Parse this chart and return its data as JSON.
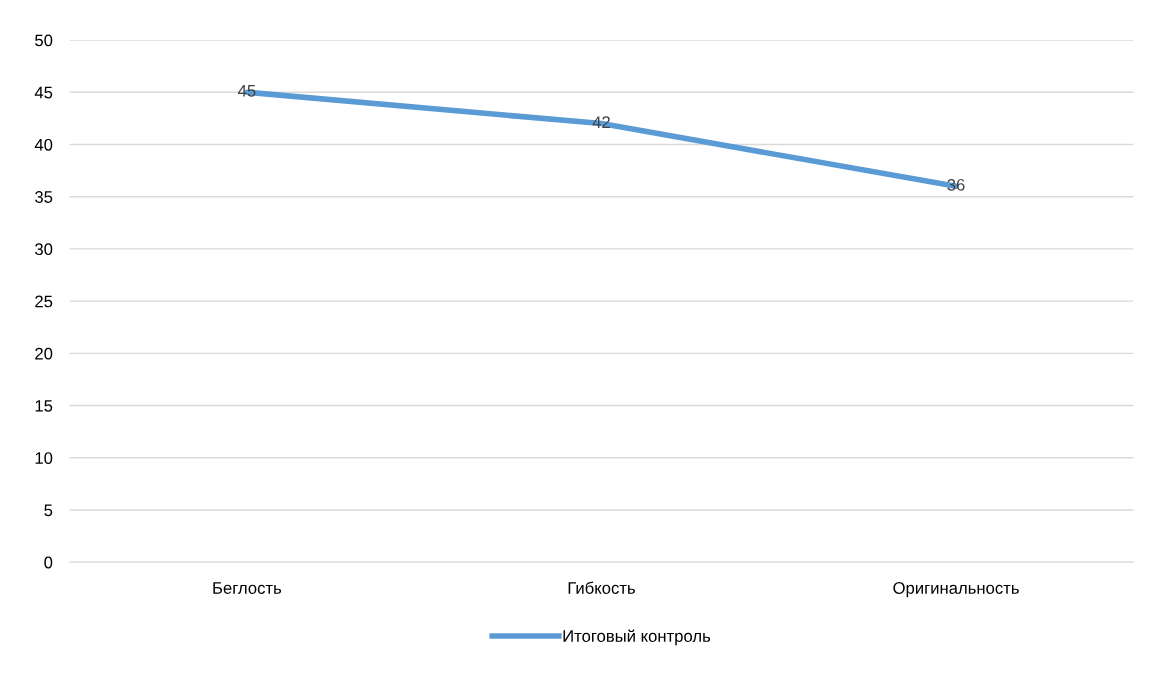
{
  "chart_data": {
    "type": "line",
    "categories": [
      "Беглость",
      "Гибкость",
      "Оригинальность"
    ],
    "series": [
      {
        "name": "Итоговый контроль",
        "color": "#5b9bd5",
        "values": [
          45,
          42,
          36
        ]
      }
    ],
    "ylim": [
      0,
      50
    ],
    "yticks": [
      0,
      5,
      10,
      15,
      20,
      25,
      30,
      35,
      40,
      45,
      50
    ],
    "grid": "y",
    "legend": "bottom",
    "data_labels": true,
    "marker": "none",
    "line_style": "solid"
  }
}
